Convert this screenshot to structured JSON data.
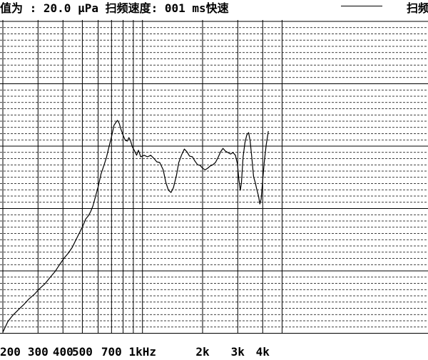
{
  "header": {
    "text": "值为 : 20.0 μPa 扫频速度: 001 ms快速",
    "right_text": "扫频"
  },
  "chart_data": {
    "type": "line",
    "xscale": "log",
    "xlabel": "",
    "ylabel": "",
    "grid": true,
    "x_tick_labels": [
      {
        "freq": 200,
        "label": "200"
      },
      {
        "freq": 300,
        "label": "300"
      },
      {
        "freq": 400,
        "label": "400"
      },
      {
        "freq": 500,
        "label": "500"
      },
      {
        "freq": 700,
        "label": "700"
      },
      {
        "freq": 1000,
        "label": "1kHz"
      },
      {
        "freq": 2000,
        "label": "2k"
      },
      {
        "freq": 3000,
        "label": "3k"
      },
      {
        "freq": 4000,
        "label": "4k"
      }
    ],
    "x_gridlines": [
      200,
      300,
      400,
      500,
      600,
      700,
      800,
      900,
      1000,
      2000,
      3000,
      4000,
      5000
    ],
    "y_major_lines": 5,
    "y_minor_per_major": 9,
    "series": [
      {
        "values": [
          [
            200,
            0.0
          ],
          [
            212,
            4.3
          ],
          [
            225,
            6.9
          ],
          [
            240,
            9.1
          ],
          [
            255,
            11.1
          ],
          [
            270,
            13.3
          ],
          [
            287,
            15.1
          ],
          [
            305,
            17.4
          ],
          [
            325,
            19.4
          ],
          [
            345,
            22.0
          ],
          [
            365,
            24.3
          ],
          [
            385,
            27.1
          ],
          [
            405,
            29.7
          ],
          [
            425,
            31.7
          ],
          [
            445,
            34.0
          ],
          [
            465,
            37.1
          ],
          [
            485,
            40.0
          ],
          [
            505,
            42.9
          ],
          [
            520,
            45.4
          ],
          [
            535,
            46.6
          ],
          [
            550,
            48.3
          ],
          [
            565,
            50.6
          ],
          [
            580,
            54.0
          ],
          [
            600,
            58.3
          ],
          [
            620,
            63.4
          ],
          [
            640,
            66.6
          ],
          [
            660,
            70.0
          ],
          [
            680,
            74.3
          ],
          [
            700,
            78.3
          ],
          [
            720,
            82.9
          ],
          [
            735,
            84.0
          ],
          [
            750,
            84.9
          ],
          [
            765,
            83.7
          ],
          [
            780,
            81.4
          ],
          [
            800,
            78.9
          ],
          [
            820,
            76.9
          ],
          [
            840,
            76.6
          ],
          [
            855,
            78.0
          ],
          [
            870,
            76.9
          ],
          [
            890,
            74.3
          ],
          [
            910,
            72.9
          ],
          [
            935,
            70.9
          ],
          [
            955,
            72.9
          ],
          [
            980,
            70.3
          ],
          [
            1020,
            70.9
          ],
          [
            1060,
            70.3
          ],
          [
            1100,
            70.9
          ],
          [
            1140,
            69.7
          ],
          [
            1180,
            68.3
          ],
          [
            1220,
            68.0
          ],
          [
            1270,
            65.1
          ],
          [
            1310,
            60.0
          ],
          [
            1350,
            56.9
          ],
          [
            1390,
            56.0
          ],
          [
            1430,
            58.0
          ],
          [
            1480,
            62.9
          ],
          [
            1520,
            68.0
          ],
          [
            1570,
            71.1
          ],
          [
            1620,
            73.4
          ],
          [
            1670,
            72.3
          ],
          [
            1720,
            70.6
          ],
          [
            1780,
            70.3
          ],
          [
            1830,
            68.6
          ],
          [
            1890,
            67.1
          ],
          [
            1940,
            66.9
          ],
          [
            2000,
            65.7
          ],
          [
            2060,
            65.1
          ],
          [
            2120,
            65.7
          ],
          [
            2180,
            66.6
          ],
          [
            2250,
            67.1
          ],
          [
            2320,
            68.0
          ],
          [
            2390,
            70.0
          ],
          [
            2460,
            72.3
          ],
          [
            2530,
            73.7
          ],
          [
            2600,
            72.6
          ],
          [
            2680,
            72.0
          ],
          [
            2760,
            71.4
          ],
          [
            2840,
            72.0
          ],
          [
            2920,
            70.9
          ],
          [
            2990,
            67.4
          ],
          [
            3040,
            61.1
          ],
          [
            3090,
            56.9
          ],
          [
            3130,
            60.0
          ],
          [
            3190,
            70.3
          ],
          [
            3260,
            76.0
          ],
          [
            3330,
            79.1
          ],
          [
            3400,
            80.0
          ],
          [
            3460,
            76.6
          ],
          [
            3530,
            69.7
          ],
          [
            3600,
            62.3
          ],
          [
            3670,
            60.0
          ],
          [
            3740,
            57.1
          ],
          [
            3810,
            54.6
          ],
          [
            3870,
            51.4
          ],
          [
            3930,
            53.4
          ],
          [
            3990,
            60.0
          ],
          [
            4070,
            68.0
          ],
          [
            4160,
            74.9
          ],
          [
            4270,
            80.6
          ]
        ]
      }
    ]
  }
}
